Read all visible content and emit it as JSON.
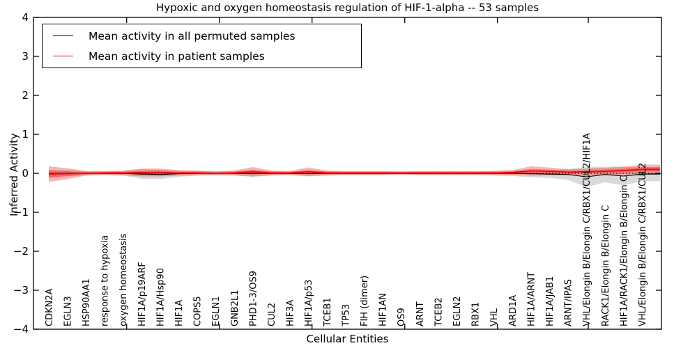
{
  "title": "Hypoxic and oxygen homeostasis regulation of HIF-1-alpha -- 53 samples",
  "legend": {
    "entries": [
      {
        "label": "Mean activity in all permuted samples",
        "color": "#000000"
      },
      {
        "label": "Mean activity in patient samples",
        "color": "#ff0000"
      }
    ],
    "position": "upper left"
  },
  "chart_data": {
    "type": "line",
    "title": "Hypoxic and oxygen homeostasis regulation of HIF-1-alpha -- 53 samples",
    "xlabel": "Cellular Entities",
    "ylabel": "Inferred Activity",
    "ylim": [
      -4,
      4
    ],
    "ytick_labels": [
      "4",
      "3",
      "2",
      "1",
      "0",
      "−1",
      "−2",
      "−3",
      "−4"
    ],
    "ytick_values": [
      4,
      3,
      2,
      1,
      0,
      -1,
      -2,
      -3,
      -4
    ],
    "grid": false,
    "zero_line": {
      "style": "dotted",
      "color": "#000000",
      "y": 0
    },
    "categories": [
      "CDKN2A",
      "EGLN3",
      "HSP90AA1",
      "response to hypoxia",
      "oxygen homeostasis",
      "HIF1A/p19ARF",
      "HIF1A/Hsp90",
      "HIF1A",
      "COPS5",
      "EGLN1",
      "GNB2L1",
      "PHD1-3/OS9",
      "CUL2",
      "HIF3A",
      "HIF1A/p53",
      "TCEB1",
      "TP53",
      "FIH (dimer)",
      "HIF1AN",
      "OS9",
      "ARNT",
      "TCEB2",
      "EGLN2",
      "RBX1",
      "VHL",
      "ARD1A",
      "HIF1A/ARNT",
      "HIF1A/JAB1",
      "ARNT/IPAS",
      "VHL/Elongin B/Elongin C/RBX1/CUL2/HIF1A",
      "RACK1/Elongin B/Elongin C",
      "HIF1A/RACK1/Elongin B/Elongin C",
      "VHL/Elongin B/Elongin C/RBX1/CUL2"
    ],
    "series": [
      {
        "name": "Mean activity in all permuted samples",
        "color": "#000000",
        "band_color": "rgba(128,128,128,0.30)",
        "values": [
          -0.01,
          0,
          0,
          0,
          0,
          -0.02,
          -0.03,
          -0.01,
          0,
          0,
          0,
          -0.01,
          0,
          0,
          -0.01,
          0,
          0,
          0,
          0,
          0,
          0,
          0,
          0,
          0,
          0,
          0,
          -0.01,
          -0.02,
          -0.03,
          -0.09,
          -0.03,
          -0.07,
          -0.02
        ],
        "band_halfwidth": [
          0.1,
          0.08,
          0.05,
          0.05,
          0.06,
          0.12,
          0.12,
          0.08,
          0.06,
          0.05,
          0.06,
          0.08,
          0.06,
          0.05,
          0.07,
          0.06,
          0.05,
          0.05,
          0.05,
          0.04,
          0.05,
          0.05,
          0.05,
          0.05,
          0.06,
          0.07,
          0.09,
          0.1,
          0.14,
          0.26,
          0.2,
          0.24,
          0.18
        ]
      },
      {
        "name": "Mean activity in patient samples",
        "color": "#ff0000",
        "band_color": "rgba(255,0,0,0.30)",
        "values": [
          -0.02,
          -0.01,
          0,
          0.01,
          0.01,
          0.02,
          0.02,
          0.01,
          0.01,
          0,
          0.01,
          0.04,
          0.01,
          0.01,
          0.04,
          0.01,
          0.01,
          0.01,
          0.01,
          0.01,
          0.01,
          0.01,
          0.01,
          0.01,
          0.01,
          0.02,
          0.06,
          0.05,
          0.03,
          0.04,
          0.05,
          0.07,
          0.1
        ],
        "band_halfwidth": [
          0.2,
          0.14,
          0.06,
          0.05,
          0.06,
          0.1,
          0.1,
          0.07,
          0.06,
          0.05,
          0.06,
          0.12,
          0.06,
          0.05,
          0.11,
          0.06,
          0.05,
          0.05,
          0.05,
          0.04,
          0.05,
          0.05,
          0.05,
          0.05,
          0.05,
          0.06,
          0.12,
          0.1,
          0.07,
          0.08,
          0.09,
          0.1,
          0.12
        ]
      }
    ],
    "x_major_ticks_at_category_index": [
      4.2,
      9.2,
      14.2,
      19.2,
      24.2,
      29.1
    ],
    "sample_count_note": "53 samples"
  }
}
